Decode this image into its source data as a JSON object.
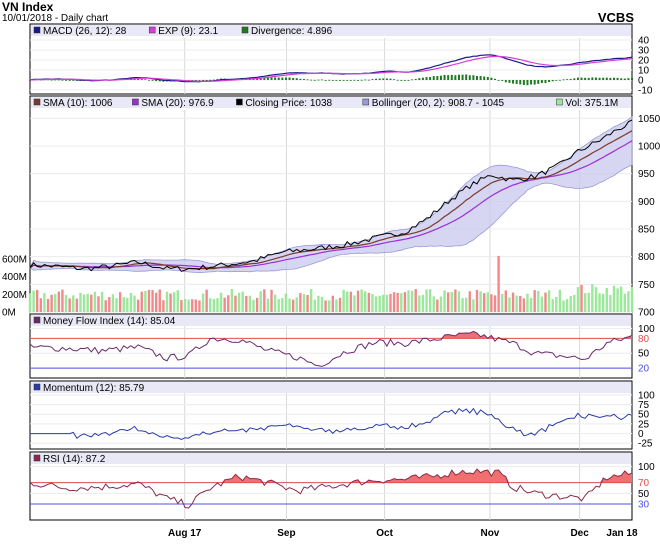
{
  "header": {
    "title": "VN Index",
    "subtitle": "10/01/2018 - Daily chart",
    "source": "VCBS"
  },
  "colors": {
    "macd": "#1a1a8c",
    "exp": "#d63fd6",
    "div_pos": "#1f7a1f",
    "div_neg": "#1f7a1f",
    "sma10": "#7a3a2a",
    "sma20": "#9b2fd6",
    "close": "#000000",
    "boll_fill": "#c8c8ee",
    "boll_edge": "#9a9ad8",
    "vol_up": "#9be89b",
    "vol_dn": "#f08a8a",
    "mfi": "#6a2a6a",
    "mom": "#2a3aa8",
    "rsi": "#8a2a4a",
    "fill_hi": "#f07070",
    "ob": "#e05050",
    "os": "#5050e0",
    "panel_bg": "#e8e8f6"
  },
  "chart_data": [
    {
      "type": "line",
      "name": "MACD panel",
      "legend": [
        {
          "label": "MACD (26, 12): 28",
          "color": "#1a1a8c"
        },
        {
          "label": "EXP (9): 23.1",
          "color": "#d63fd6"
        },
        {
          "label": "Divergence: 4.896",
          "color": "#1f7a1f"
        }
      ],
      "yticks": [
        40,
        30,
        20,
        10,
        0,
        -10
      ],
      "ylim": [
        -12,
        42
      ]
    },
    {
      "type": "line",
      "name": "Price panel",
      "legend": [
        {
          "label": "SMA (10): 1006",
          "color": "#7a3a2a"
        },
        {
          "label": "SMA (20): 976.9",
          "color": "#9b2fd6"
        },
        {
          "label": "Closing Price: 1038",
          "color": "#000000"
        },
        {
          "label": "Bollinger (20, 2): 908.7 - 1045",
          "color": "#9a9ad8"
        },
        {
          "label": "Vol: 375.1M",
          "color": "#9be89b"
        }
      ],
      "yticks": [
        1050,
        1000,
        950,
        900,
        850,
        800,
        750,
        700
      ],
      "ylim": [
        700,
        1065
      ],
      "vol_ticks": [
        "600M",
        "400M",
        "200M",
        "0M"
      ],
      "vol_lim": [
        0,
        700
      ],
      "close_anchors": [
        [
          0,
          785
        ],
        [
          8,
          782
        ],
        [
          15,
          778
        ],
        [
          22,
          782
        ],
        [
          30,
          790
        ],
        [
          38,
          778
        ],
        [
          45,
          778
        ],
        [
          55,
          786
        ],
        [
          62,
          792
        ],
        [
          70,
          808
        ],
        [
          80,
          815
        ],
        [
          88,
          822
        ],
        [
          96,
          834
        ],
        [
          104,
          845
        ],
        [
          110,
          868
        ],
        [
          116,
          900
        ],
        [
          122,
          928
        ],
        [
          128,
          948
        ],
        [
          134,
          938
        ],
        [
          140,
          945
        ],
        [
          146,
          962
        ],
        [
          152,
          990
        ],
        [
          158,
          1010
        ],
        [
          163,
          1030
        ],
        [
          167,
          1042
        ]
      ]
    },
    {
      "type": "line",
      "name": "Money Flow Index panel",
      "legend": [
        {
          "label": "Money Flow Index (14): 85.04",
          "color": "#6a2a6a"
        }
      ],
      "yticks": [
        100,
        80,
        50,
        20
      ],
      "ylim": [
        0,
        105
      ],
      "overbought": 80,
      "oversold": 20
    },
    {
      "type": "line",
      "name": "Momentum panel",
      "legend": [
        {
          "label": "Momentum (12): 85.79",
          "color": "#2a3aa8"
        }
      ],
      "yticks": [
        100,
        75,
        50,
        25,
        0,
        -25
      ],
      "ylim": [
        -40,
        105
      ]
    },
    {
      "type": "line",
      "name": "RSI panel",
      "legend": [
        {
          "label": "RSI (14): 87.2",
          "color": "#8a2a4a"
        }
      ],
      "yticks": [
        100,
        70,
        50,
        30
      ],
      "ylim": [
        0,
        105
      ],
      "overbought": 70,
      "oversold": 30
    }
  ],
  "xaxis": {
    "labels": [
      "Aug 17",
      "Sep",
      "Oct",
      "Nov",
      "Dec",
      "Jan 18"
    ],
    "positions": [
      0.257,
      0.426,
      0.589,
      0.764,
      0.913,
      1.072
    ]
  }
}
